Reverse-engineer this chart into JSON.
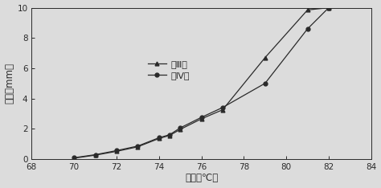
{
  "series_III_x": [
    70,
    71,
    72,
    73,
    74,
    74.5,
    75,
    76,
    77,
    79,
    81,
    82
  ],
  "series_III_y": [
    0.05,
    0.25,
    0.5,
    0.8,
    1.35,
    1.55,
    1.95,
    2.65,
    3.25,
    6.7,
    9.85,
    10.0
  ],
  "series_IV_x": [
    70,
    71,
    72,
    73,
    74,
    74.5,
    75,
    76,
    77,
    79,
    81,
    82
  ],
  "series_IV_y": [
    0.08,
    0.28,
    0.55,
    0.85,
    1.4,
    1.6,
    2.05,
    2.75,
    3.4,
    5.0,
    8.6,
    10.0
  ],
  "xlabel": "温度（℃）",
  "ylabel": "行程（mm）",
  "legend_III": "（Ⅲ）",
  "legend_IV": "（Ⅳ）",
  "xlim": [
    68,
    84
  ],
  "ylim": [
    0,
    10
  ],
  "xticks": [
    68,
    70,
    72,
    74,
    76,
    78,
    80,
    82,
    84
  ],
  "yticks": [
    0,
    2,
    4,
    6,
    8,
    10
  ],
  "line_color": "#2a2a2a",
  "background": "#dcdcdc"
}
